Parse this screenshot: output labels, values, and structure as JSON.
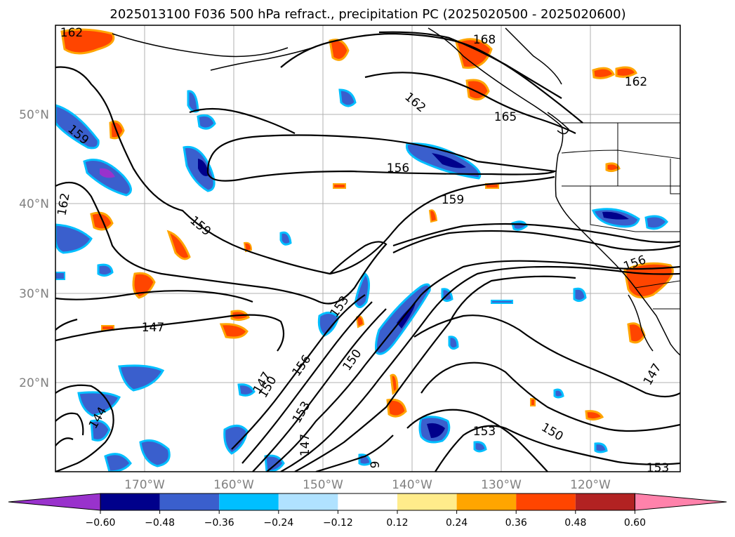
{
  "title": "2025013100 F036 500 hPa refract., precipitation PC (2025020500 - 2025020600)",
  "lat_labels": [
    "50°N",
    "40°N",
    "30°N",
    "20°N"
  ],
  "lon_labels": [
    "170°W",
    "160°W",
    "150°W",
    "140°W",
    "130°W",
    "120°W"
  ],
  "contour_labels": [
    "162",
    "168",
    "162",
    "165",
    "162",
    "159",
    "156",
    "159",
    "162",
    "159",
    "156",
    "153",
    "147",
    "150",
    "156",
    "150",
    "153",
    "147",
    "147",
    "153",
    "150",
    "153",
    "144",
    "147",
    "9"
  ],
  "colorbar": {
    "labels": [
      "−0.60",
      "−0.48",
      "−0.36",
      "−0.24",
      "−0.12",
      "0.12",
      "0.24",
      "0.36",
      "0.48",
      "0.60"
    ],
    "colors": [
      "#9932cc",
      "#00008b",
      "#3a5fcd",
      "#00bfff",
      "#b0e2ff",
      "#ffffff",
      "#ffec8b",
      "#ffa500",
      "#ff4500",
      "#b22222",
      "#ff82ab"
    ]
  },
  "colors": {
    "contour": "#000000",
    "coast": "#000000",
    "grid": "#b0b0b0"
  }
}
